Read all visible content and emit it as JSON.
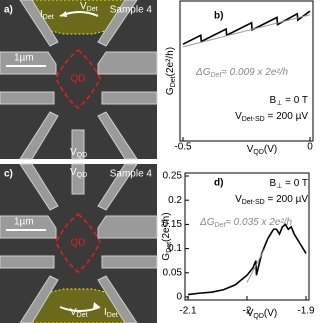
{
  "images": [
    {
      "panel": "a)",
      "sample": "Sample 4",
      "current": {
        "main": "I",
        "sub": "Det"
      },
      "gate": {
        "main": "V",
        "sub": "Det"
      },
      "scale": "1µm",
      "dot": "QD",
      "plunger": {
        "main": "V",
        "sub": "QD"
      }
    },
    {
      "panel": "c)",
      "sample": "Sample 4",
      "current": {
        "main": "I",
        "sub": "Det"
      },
      "gate": {
        "main": "V",
        "sub": "Det"
      },
      "scale": "1µm",
      "dot": "QD",
      "plunger": {
        "main": "V",
        "sub": "QD"
      }
    }
  ],
  "chart_data": [
    {
      "type": "line",
      "panel": "b)",
      "x_label": {
        "main": "V",
        "sub": "QD",
        "suffix": "(V)"
      },
      "y_label": {
        "main": "G",
        "sub": "Det",
        "suffix": "(2e²/h)"
      },
      "annotations": [
        {
          "main": "ΔG",
          "sub": "Det",
          "suffix": "≈ 0.009 x 2e²/h"
        },
        {
          "main": "B",
          "sub": "⊥",
          "suffix": " = 0 T"
        },
        {
          "main": "V",
          "sub": "Det-SD",
          "suffix": " = 200 µV"
        }
      ],
      "xlim": [
        -0.5,
        0
      ],
      "xticks": [
        -0.5,
        0
      ],
      "ylim": [
        0,
        0.15
      ],
      "series": [
        {
          "color": "#000000",
          "x": [
            -0.5,
            -0.43,
            -0.428,
            -0.33,
            -0.328,
            -0.23,
            -0.228,
            -0.13,
            -0.128,
            -0.05,
            -0.048,
            0
          ],
          "values": [
            0.105,
            0.115,
            0.108,
            0.122,
            0.115,
            0.129,
            0.121,
            0.135,
            0.127,
            0.139,
            0.132,
            0.142
          ]
        },
        {
          "color": "#999999",
          "x": [
            -0.5,
            0
          ],
          "values": [
            0.102,
            0.138
          ]
        }
      ]
    },
    {
      "type": "line",
      "panel": "d)",
      "x_label": {
        "main": "V",
        "sub": "QD",
        "suffix": "(V)"
      },
      "y_label": {
        "main": "G",
        "sub": "Det",
        "suffix": "(2e²/h)"
      },
      "annotations": [
        {
          "main": "ΔG",
          "sub": "Det",
          "suffix": "≈ 0.035 x 2e²/h"
        },
        {
          "main": "B",
          "sub": "⊥",
          "suffix": " = 0 T"
        },
        {
          "main": "V",
          "sub": "Det-SD",
          "suffix": " = 200 µV"
        }
      ],
      "xlim": [
        -2.1,
        -1.9
      ],
      "xticks": [
        -2.1,
        -2,
        -1.9
      ],
      "ylim": [
        0,
        0.25
      ],
      "yticks": [
        0,
        0.05,
        0.1,
        0.15,
        0.2,
        0.25
      ],
      "series": [
        {
          "color": "#000000",
          "x": [
            -2.1,
            -2.08,
            -2.06,
            -2.04,
            -2.02,
            -2.0,
            -1.99,
            -1.985,
            -1.984,
            -1.975,
            -1.965,
            -1.955,
            -1.95,
            -1.945,
            -1.94,
            -1.935,
            -1.93,
            -1.925,
            -1.92,
            -1.915,
            -1.91,
            -1.905,
            -1.9
          ],
          "values": [
            0.005,
            0.008,
            0.01,
            0.015,
            0.025,
            0.045,
            0.06,
            0.075,
            0.045,
            0.09,
            0.12,
            0.14,
            0.14,
            0.13,
            0.145,
            0.15,
            0.14,
            0.145,
            0.13,
            0.12,
            0.11,
            0.1,
            0.09
          ]
        },
        {
          "color": "#999999",
          "x": [
            -2.0,
            -1.97
          ],
          "values": [
            0.03,
            0.1
          ]
        }
      ]
    }
  ]
}
